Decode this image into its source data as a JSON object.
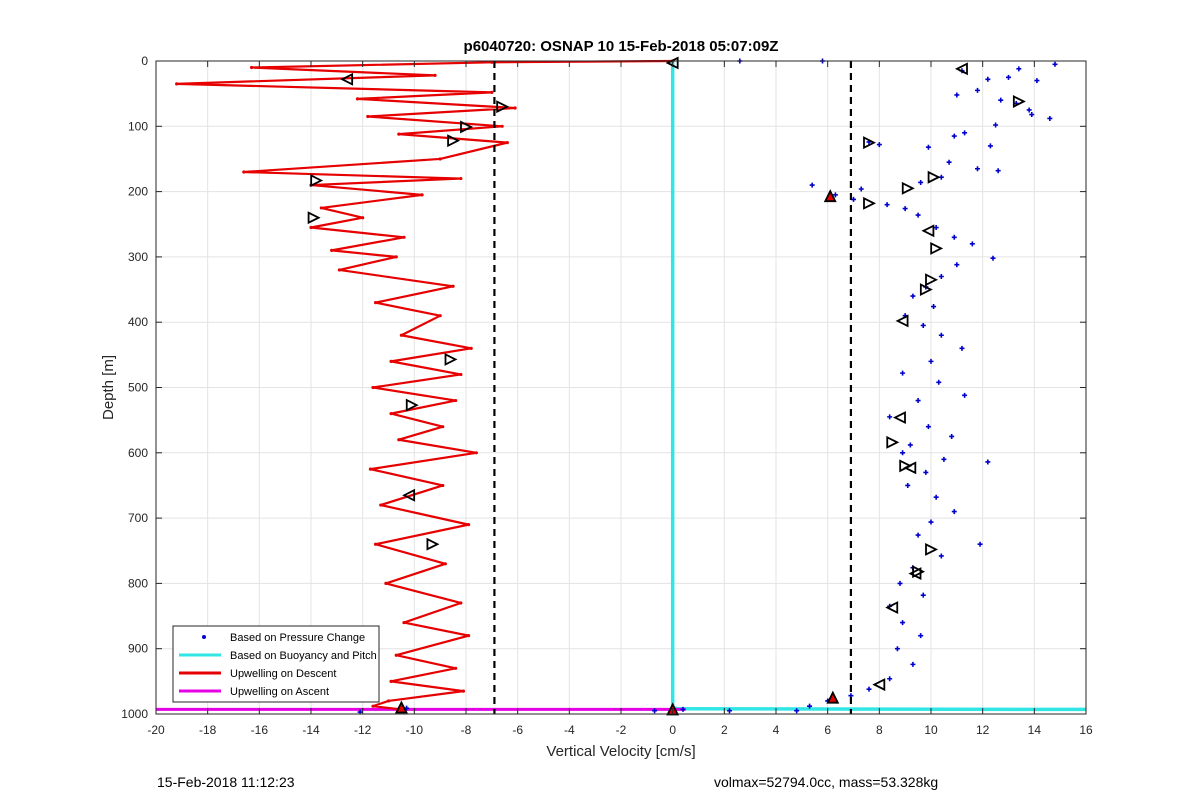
{
  "chart_data": {
    "type": "scatter",
    "title": "p6040720: OSNAP 10 15-Feb-2018 05:07:09Z",
    "xlabel": "Vertical Velocity [cm/s]",
    "ylabel": "Depth [m]",
    "xlim": [
      -20,
      16
    ],
    "ylim": [
      0,
      1000
    ],
    "y_reversed": true,
    "xticks": [
      -20,
      -18,
      -16,
      -14,
      -12,
      -10,
      -8,
      -6,
      -4,
      -2,
      0,
      2,
      4,
      6,
      8,
      10,
      12,
      14,
      16
    ],
    "yticks": [
      0,
      100,
      200,
      300,
      400,
      500,
      600,
      700,
      800,
      900,
      1000
    ],
    "grid": true,
    "legend_position": "bottom-left",
    "reference_lines": {
      "x": [
        -6.9,
        6.9
      ],
      "style": "dashed",
      "color": "#000000"
    },
    "series": [
      {
        "name": "Based on Pressure Change",
        "kind": "points",
        "color": "#0000cc",
        "points": [
          [
            11.2,
            15
          ],
          [
            14.8,
            5
          ],
          [
            13.4,
            12
          ],
          [
            13.0,
            25
          ],
          [
            14.1,
            30
          ],
          [
            12.2,
            28
          ],
          [
            11.8,
            45
          ],
          [
            12.7,
            60
          ],
          [
            13.3,
            65
          ],
          [
            11.0,
            52
          ],
          [
            13.9,
            82
          ],
          [
            14.6,
            88
          ],
          [
            12.5,
            98
          ],
          [
            11.3,
            110
          ],
          [
            10.9,
            115
          ],
          [
            12.3,
            130
          ],
          [
            13.8,
            75
          ],
          [
            7.6,
            124
          ],
          [
            8.0,
            128
          ],
          [
            9.9,
            132
          ],
          [
            10.7,
            155
          ],
          [
            11.8,
            165
          ],
          [
            12.6,
            168
          ],
          [
            10.4,
            178
          ],
          [
            9.6,
            186
          ],
          [
            7.3,
            196
          ],
          [
            5.4,
            190
          ],
          [
            6.3,
            205
          ],
          [
            7.0,
            212
          ],
          [
            8.3,
            220
          ],
          [
            9.0,
            226
          ],
          [
            9.5,
            236
          ],
          [
            10.2,
            255
          ],
          [
            10.9,
            270
          ],
          [
            11.6,
            280
          ],
          [
            12.4,
            302
          ],
          [
            11.0,
            312
          ],
          [
            10.4,
            330
          ],
          [
            9.8,
            346
          ],
          [
            9.3,
            360
          ],
          [
            10.1,
            376
          ],
          [
            9.0,
            390
          ],
          [
            9.7,
            405
          ],
          [
            10.4,
            420
          ],
          [
            11.2,
            440
          ],
          [
            10.0,
            460
          ],
          [
            8.9,
            478
          ],
          [
            10.3,
            492
          ],
          [
            11.3,
            512
          ],
          [
            9.5,
            520
          ],
          [
            8.4,
            545
          ],
          [
            9.9,
            560
          ],
          [
            10.8,
            575
          ],
          [
            9.2,
            588
          ],
          [
            8.9,
            600
          ],
          [
            10.5,
            610
          ],
          [
            12.2,
            614
          ],
          [
            9.8,
            630
          ],
          [
            9.1,
            650
          ],
          [
            10.2,
            668
          ],
          [
            10.9,
            690
          ],
          [
            10.0,
            706
          ],
          [
            9.5,
            726
          ],
          [
            11.9,
            740
          ],
          [
            10.4,
            758
          ],
          [
            9.3,
            776
          ],
          [
            8.8,
            800
          ],
          [
            9.7,
            818
          ],
          [
            8.4,
            835
          ],
          [
            8.9,
            860
          ],
          [
            9.6,
            880
          ],
          [
            8.7,
            900
          ],
          [
            9.3,
            924
          ],
          [
            8.4,
            946
          ],
          [
            7.6,
            962
          ],
          [
            6.9,
            972
          ],
          [
            6.0,
            980
          ],
          [
            5.3,
            988
          ],
          [
            4.8,
            995
          ],
          [
            2.2,
            995
          ],
          [
            0.4,
            993
          ],
          [
            -10.3,
            991
          ],
          [
            -12.1,
            997
          ],
          [
            -0.7,
            995
          ],
          [
            2.6,
            0
          ],
          [
            5.8,
            0
          ]
        ]
      },
      {
        "name": "Based on Buoyancy and Pitch",
        "kind": "line",
        "color": "#33e6e6",
        "x": [
          0,
          0,
          0.2,
          16
        ],
        "y": [
          0,
          990,
          992,
          993
        ]
      },
      {
        "name": "Upwelling on Descent",
        "kind": "line",
        "color": "#e60000",
        "x": [
          0,
          -7.0,
          -16.3,
          -9.2,
          -19.2,
          -7.0,
          -12.2,
          -6.1,
          -11.8,
          -6.6,
          -10.6,
          -6.4,
          -9.0,
          -16.6,
          -8.2,
          -14.0,
          -9.7,
          -13.6,
          -12.0,
          -14.0,
          -10.4,
          -13.2,
          -10.7,
          -12.9,
          -8.5,
          -11.5,
          -9.0,
          -10.5,
          -7.8,
          -10.9,
          -8.2,
          -11.6,
          -8.4,
          -10.9,
          -8.9,
          -10.6,
          -7.6,
          -11.7,
          -8.9,
          -11.3,
          -7.9,
          -11.5,
          -8.8,
          -11.1,
          -8.2,
          -10.4,
          -7.9,
          -10.7,
          -8.4,
          -10.9,
          -8.1,
          -11.0,
          -11.6,
          -10.5
        ],
        "y": [
          0,
          2,
          10,
          22,
          35,
          48,
          58,
          72,
          85,
          100,
          112,
          125,
          150,
          170,
          180,
          190,
          205,
          225,
          240,
          255,
          270,
          290,
          300,
          320,
          345,
          370,
          390,
          420,
          440,
          460,
          480,
          500,
          520,
          540,
          560,
          580,
          600,
          625,
          650,
          680,
          710,
          740,
          770,
          800,
          830,
          860,
          880,
          910,
          930,
          950,
          965,
          980,
          988,
          993
        ]
      },
      {
        "name": "Upwelling on Ascent",
        "kind": "line",
        "color": "#e600e6",
        "x": [
          -20,
          0.5
        ],
        "y": [
          993,
          993
        ]
      },
      {
        "name": "",
        "kind": "markers",
        "direction": "left",
        "points": [
          [
            0,
            3
          ],
          [
            -12.6,
            28
          ],
          [
            -10.2,
            665
          ],
          [
            8.8,
            546
          ],
          [
            9.2,
            623
          ],
          [
            8.5,
            837
          ],
          [
            11.2,
            12
          ],
          [
            9.9,
            260
          ],
          [
            8.9,
            398
          ],
          [
            9.4,
            785
          ],
          [
            8.0,
            955
          ]
        ]
      },
      {
        "name": "",
        "kind": "markers",
        "direction": "right",
        "points": [
          [
            -6.6,
            70
          ],
          [
            -8.0,
            101
          ],
          [
            -8.5,
            122
          ],
          [
            -13.8,
            183
          ],
          [
            -13.9,
            240
          ],
          [
            -8.6,
            457
          ],
          [
            -10.1,
            527
          ],
          [
            -9.3,
            740
          ],
          [
            13.4,
            62
          ],
          [
            7.6,
            125
          ],
          [
            10.1,
            178
          ],
          [
            9.1,
            195
          ],
          [
            7.6,
            218
          ],
          [
            10.2,
            287
          ],
          [
            10.0,
            335
          ],
          [
            9.8,
            350
          ],
          [
            8.5,
            584
          ],
          [
            9.0,
            620
          ],
          [
            10.0,
            748
          ],
          [
            9.5,
            782
          ]
        ]
      },
      {
        "name": "",
        "kind": "markers",
        "direction": "up",
        "points": [
          [
            6.1,
            207
          ],
          [
            6.2,
            975
          ],
          [
            0,
            993
          ],
          [
            -10.5,
            990
          ]
        ]
      }
    ]
  },
  "footer": {
    "left": "15-Feb-2018 11:12:23",
    "right": "volmax=52794.0cc, mass=53.328kg"
  }
}
